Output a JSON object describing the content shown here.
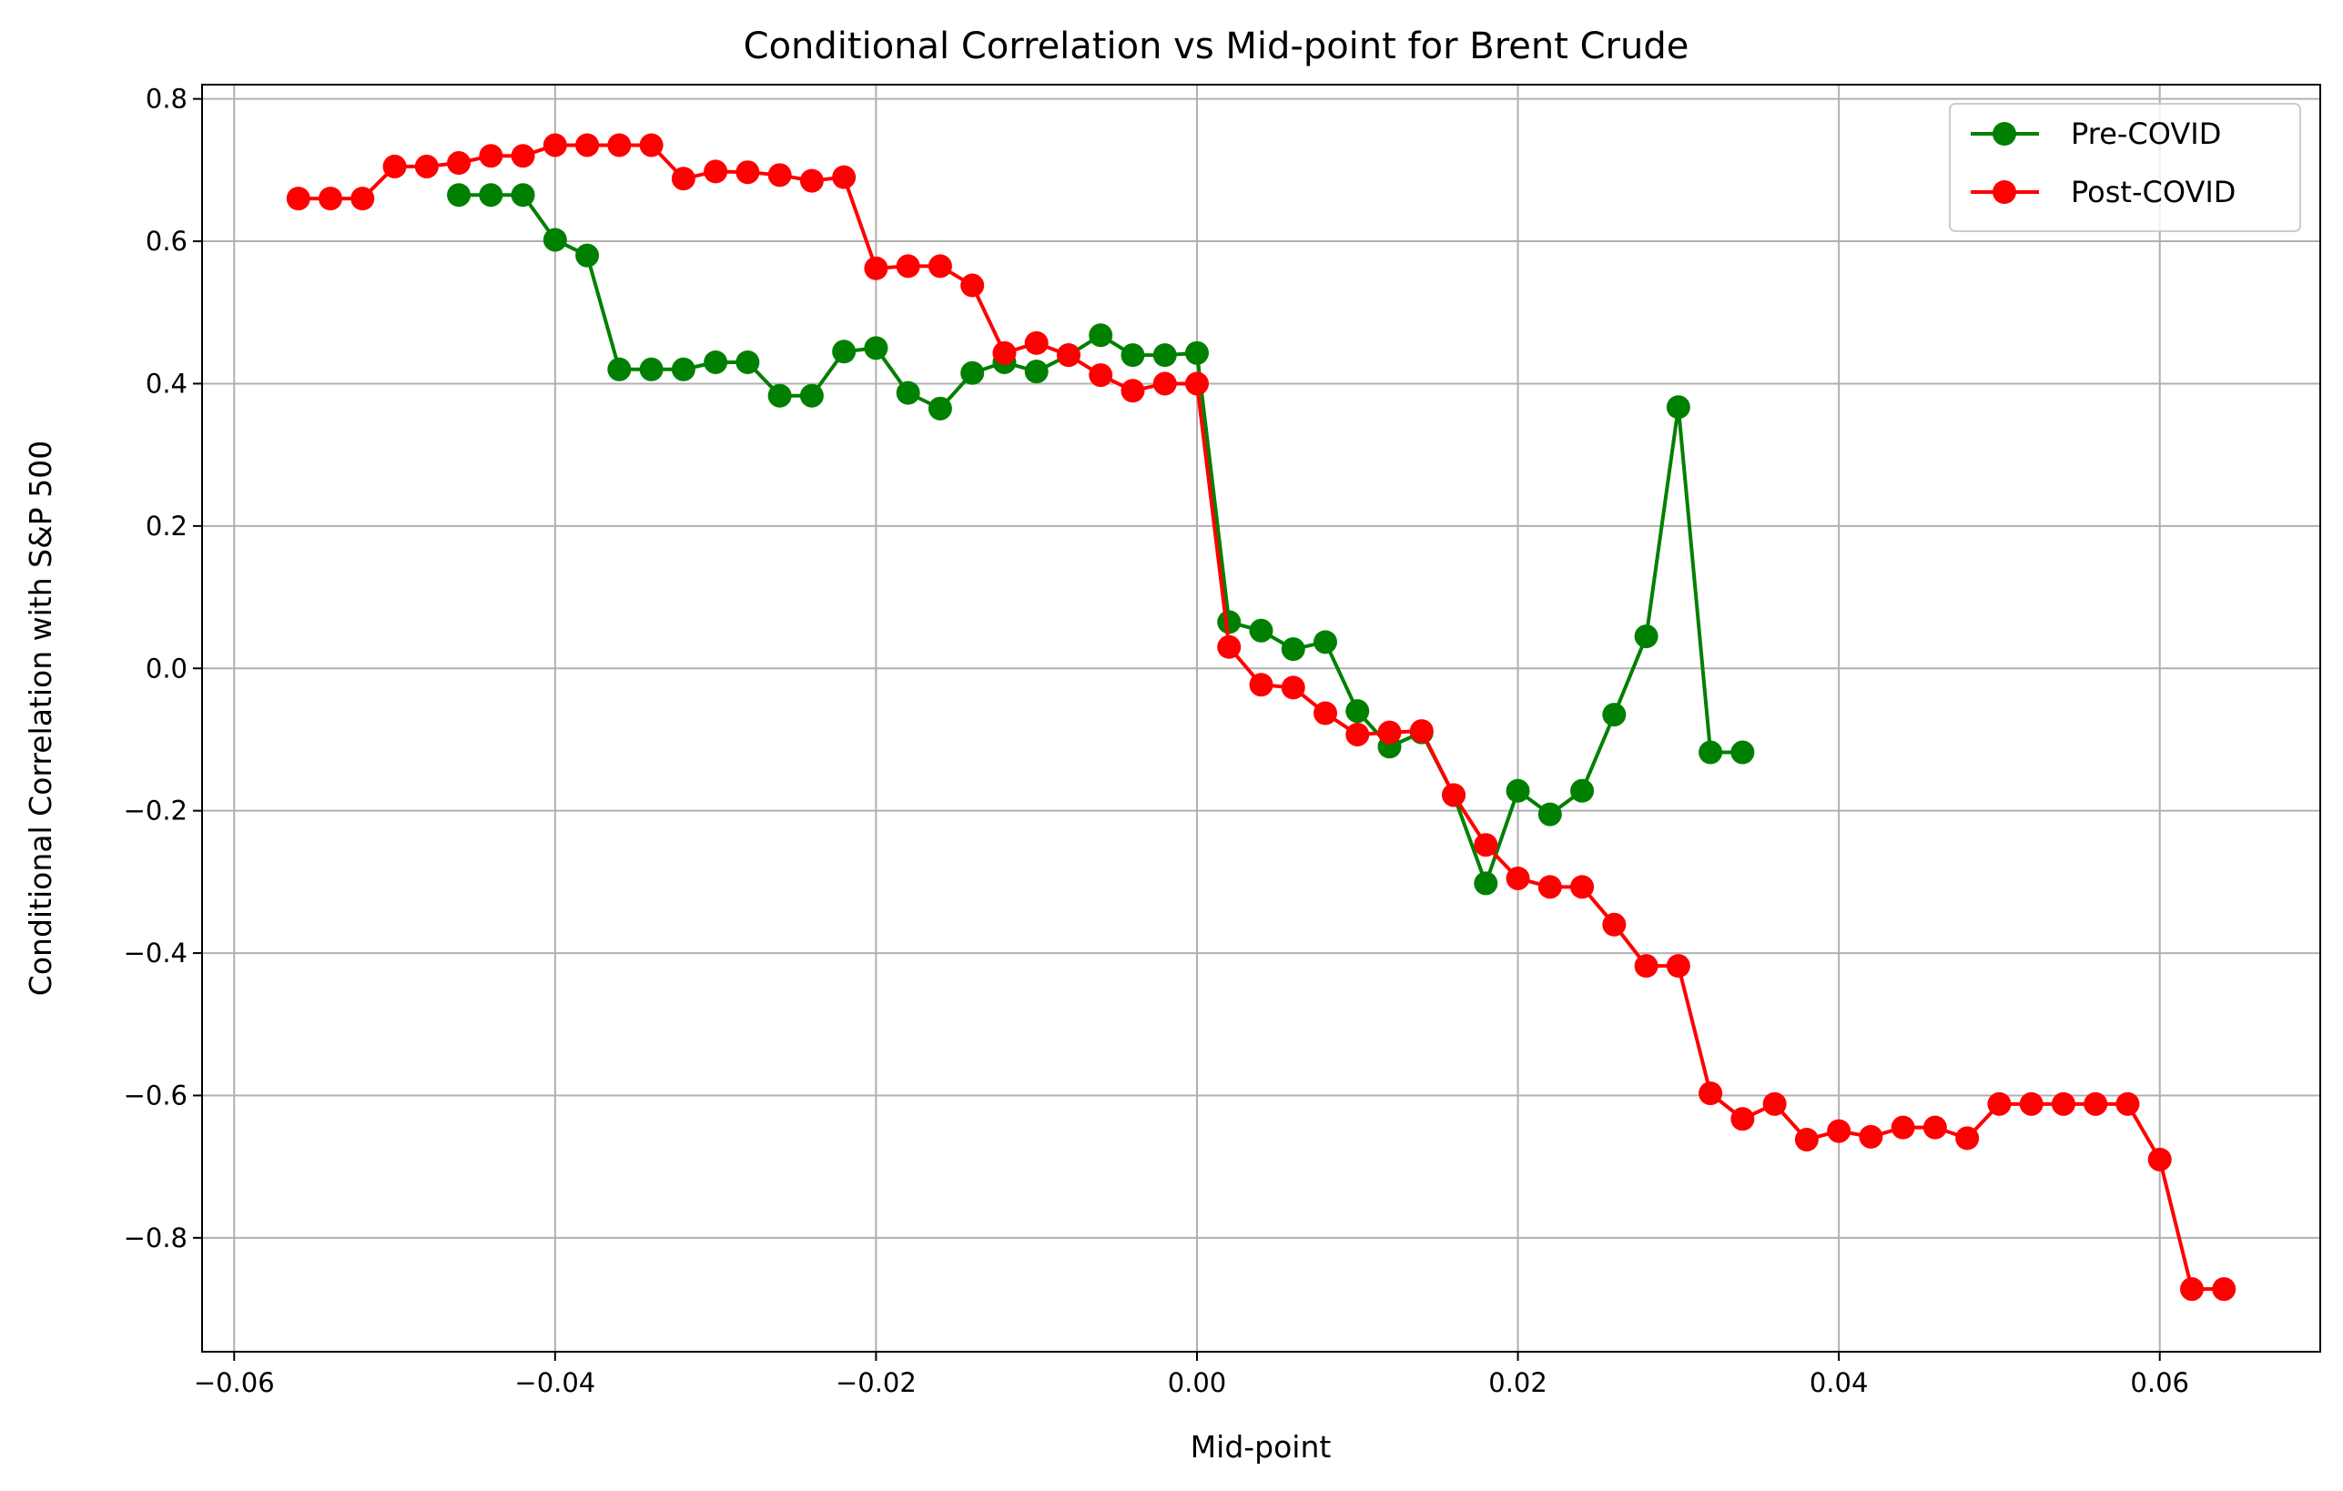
{
  "chart_data": {
    "type": "line",
    "title": "Conditional Correlation vs Mid-point for Brent Crude",
    "xlabel": "Mid-point",
    "ylabel": "Conditional Correlation with S&P 500",
    "xlim": [
      -0.062,
      0.07
    ],
    "ylim": [
      -0.96,
      0.82
    ],
    "grid": true,
    "legend_position": "top-right",
    "x_ticks": [
      {
        "value": -0.06,
        "label": "−0.06"
      },
      {
        "value": -0.04,
        "label": "−0.04"
      },
      {
        "value": -0.02,
        "label": "−0.02"
      },
      {
        "value": 0.0,
        "label": "0.00"
      },
      {
        "value": 0.02,
        "label": "0.02"
      },
      {
        "value": 0.04,
        "label": "0.04"
      },
      {
        "value": 0.06,
        "label": "0.06"
      }
    ],
    "y_ticks": [
      {
        "value": -0.8,
        "label": "−0.8"
      },
      {
        "value": -0.6,
        "label": "−0.6"
      },
      {
        "value": -0.4,
        "label": "−0.4"
      },
      {
        "value": -0.2,
        "label": "−0.2"
      },
      {
        "value": 0.0,
        "label": "0.0"
      },
      {
        "value": 0.2,
        "label": "0.2"
      },
      {
        "value": 0.4,
        "label": "0.4"
      },
      {
        "value": 0.6,
        "label": "0.6"
      },
      {
        "value": 0.8,
        "label": "0.8"
      }
    ],
    "series": [
      {
        "name": "Pre-COVID",
        "color": "#008000",
        "marker": "circle",
        "x": [
          -0.046,
          -0.044,
          -0.042,
          -0.04,
          -0.038,
          -0.036,
          -0.034,
          -0.032,
          -0.03,
          -0.028,
          -0.026,
          -0.024,
          -0.022,
          -0.02,
          -0.018,
          -0.016,
          -0.014,
          -0.012,
          -0.01,
          -0.008,
          -0.006,
          -0.004,
          -0.002,
          0.0,
          0.002,
          0.004,
          0.006,
          0.008,
          0.01,
          0.012,
          0.014,
          0.016,
          0.018,
          0.02,
          0.022,
          0.024,
          0.026,
          0.028,
          0.03,
          0.032,
          0.034
        ],
        "y": [
          0.665,
          0.665,
          0.665,
          0.602,
          0.58,
          0.42,
          0.42,
          0.42,
          0.43,
          0.43,
          0.383,
          0.383,
          0.445,
          0.45,
          0.387,
          0.365,
          0.415,
          0.43,
          0.417,
          0.44,
          0.468,
          0.44,
          0.44,
          0.443,
          0.065,
          0.053,
          0.027,
          0.037,
          -0.06,
          -0.11,
          -0.09,
          -0.178,
          -0.302,
          -0.172,
          -0.205,
          -0.172,
          -0.065,
          0.045,
          0.367,
          -0.118,
          -0.118
        ]
      },
      {
        "name": "Post-COVID",
        "color": "#ff0000",
        "marker": "circle",
        "x": [
          -0.056,
          -0.054,
          -0.052,
          -0.05,
          -0.048,
          -0.046,
          -0.044,
          -0.042,
          -0.04,
          -0.038,
          -0.036,
          -0.034,
          -0.032,
          -0.03,
          -0.028,
          -0.026,
          -0.024,
          -0.022,
          -0.02,
          -0.018,
          -0.016,
          -0.014,
          -0.012,
          -0.01,
          -0.008,
          -0.006,
          -0.004,
          -0.002,
          0.0,
          0.002,
          0.004,
          0.006,
          0.008,
          0.01,
          0.012,
          0.014,
          0.016,
          0.018,
          0.02,
          0.022,
          0.024,
          0.026,
          0.028,
          0.03,
          0.032,
          0.034,
          0.036,
          0.038,
          0.04,
          0.042,
          0.044,
          0.046,
          0.048,
          0.05,
          0.052,
          0.054,
          0.056,
          0.058,
          0.06,
          0.062,
          0.064
        ],
        "y": [
          0.66,
          0.66,
          0.66,
          0.705,
          0.705,
          0.71,
          0.72,
          0.72,
          0.735,
          0.735,
          0.735,
          0.735,
          0.688,
          0.698,
          0.697,
          0.693,
          0.685,
          0.69,
          0.562,
          0.565,
          0.565,
          0.538,
          0.443,
          0.457,
          0.44,
          0.412,
          0.39,
          0.4,
          0.4,
          0.03,
          -0.023,
          -0.027,
          -0.063,
          -0.093,
          -0.09,
          -0.088,
          -0.178,
          -0.248,
          -0.295,
          -0.307,
          -0.307,
          -0.36,
          -0.418,
          -0.418,
          -0.597,
          -0.633,
          -0.612,
          -0.662,
          -0.65,
          -0.658,
          -0.645,
          -0.645,
          -0.66,
          -0.612,
          -0.612,
          -0.612,
          -0.612,
          -0.612,
          -0.69,
          -0.872,
          -0.872
        ]
      }
    ]
  }
}
